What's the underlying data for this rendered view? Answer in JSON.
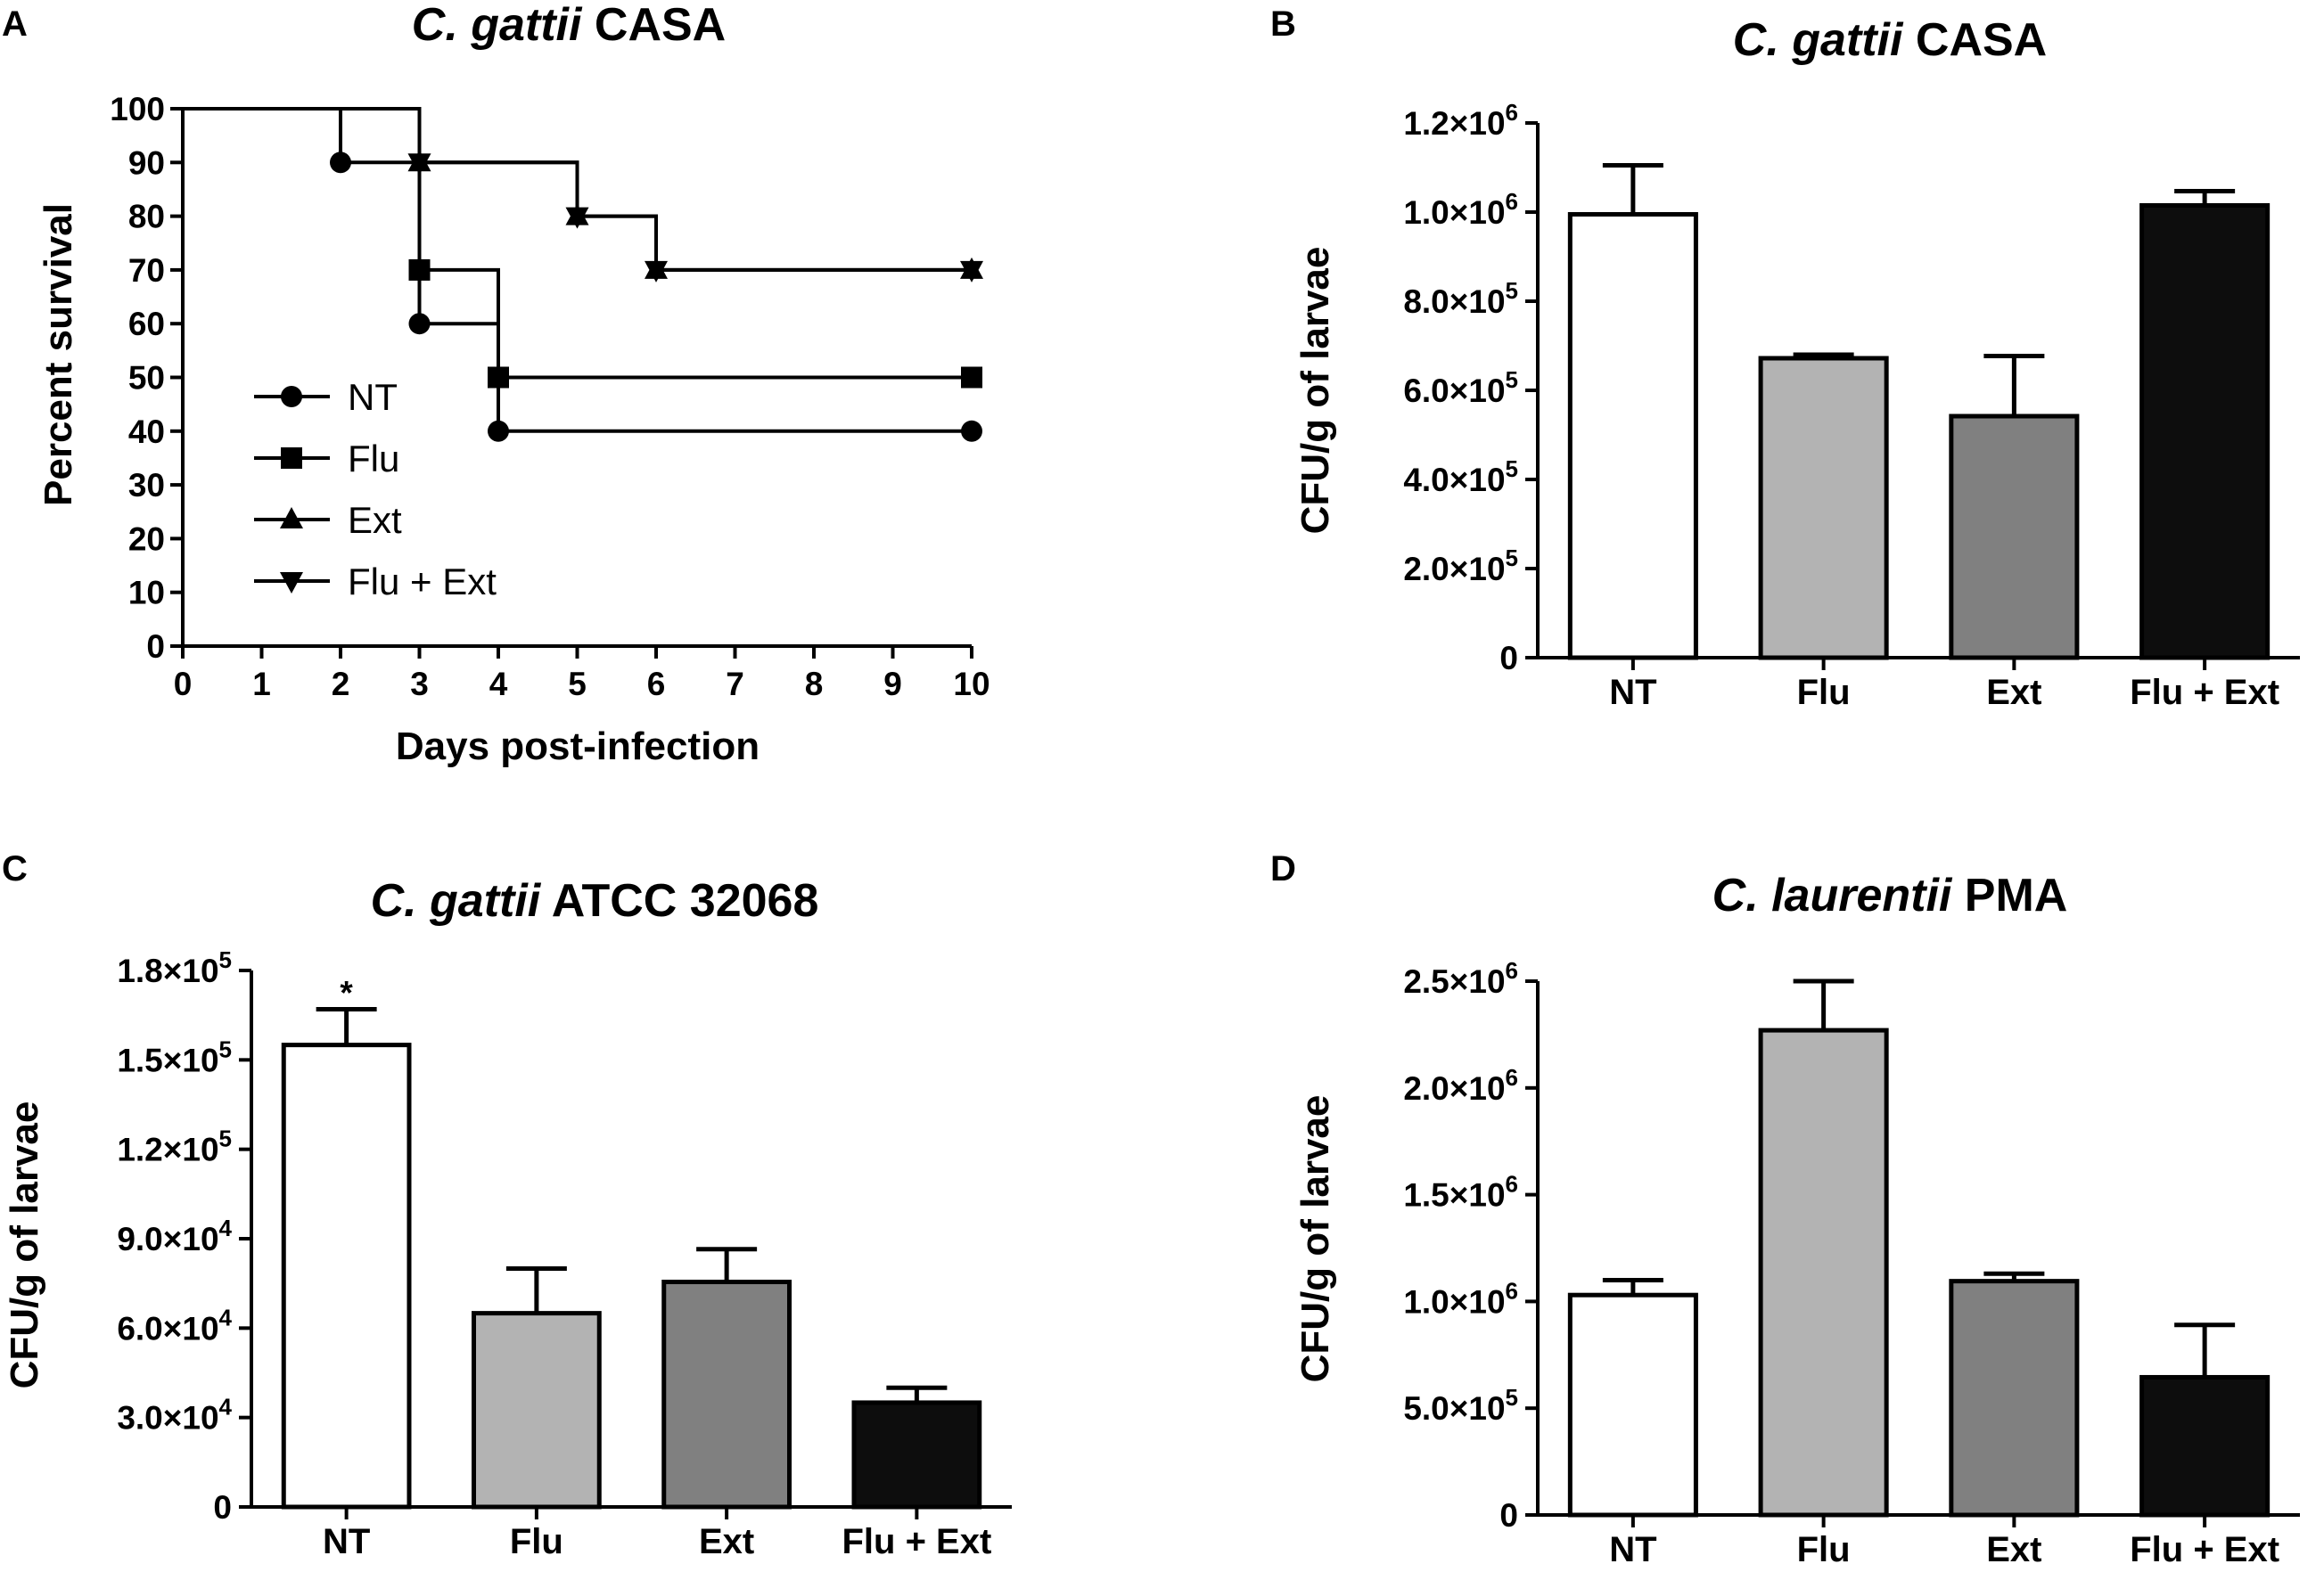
{
  "chart_data": [
    {
      "panel": "A",
      "type": "line",
      "title_italic": "C. gattii",
      "title_rest": " CASA",
      "xlabel": "Days post-infection",
      "ylabel": "Percent survival",
      "xlim": [
        0,
        10
      ],
      "ylim": [
        0,
        100
      ],
      "xticks": [
        "0",
        "1",
        "2",
        "3",
        "4",
        "5",
        "6",
        "7",
        "8",
        "9",
        "10"
      ],
      "yticks": [
        "0",
        "10",
        "20",
        "30",
        "40",
        "50",
        "60",
        "70",
        "80",
        "90",
        "100"
      ],
      "series": [
        {
          "name": "NT",
          "marker": "circle",
          "steps": [
            [
              0,
              100
            ],
            [
              2,
              90
            ],
            [
              3,
              60
            ],
            [
              4,
              40
            ],
            [
              10,
              40
            ]
          ]
        },
        {
          "name": "Flu",
          "marker": "square",
          "steps": [
            [
              0,
              100
            ],
            [
              3,
              70
            ],
            [
              4,
              50
            ],
            [
              10,
              50
            ]
          ]
        },
        {
          "name": "Ext",
          "marker": "triangle-up",
          "steps": [
            [
              0,
              100
            ],
            [
              3,
              90
            ],
            [
              5,
              80
            ],
            [
              6,
              70
            ],
            [
              10,
              70
            ]
          ]
        },
        {
          "name": "Flu + Ext",
          "marker": "triangle-down",
          "steps": [
            [
              0,
              100
            ],
            [
              3,
              90
            ],
            [
              5,
              80
            ],
            [
              6,
              70
            ],
            [
              10,
              70
            ]
          ]
        }
      ]
    },
    {
      "panel": "B",
      "type": "bar",
      "title_italic": "C. gattii",
      "title_rest": " CASA",
      "ylabel": "CFU/g of larvae",
      "ylim": [
        0,
        1200000
      ],
      "yticks": [
        {
          "value": 0,
          "mant": "0",
          "exp": ""
        },
        {
          "value": 200000,
          "mant": "2.0×10",
          "exp": "5"
        },
        {
          "value": 400000,
          "mant": "4.0×10",
          "exp": "5"
        },
        {
          "value": 600000,
          "mant": "6.0×10",
          "exp": "5"
        },
        {
          "value": 800000,
          "mant": "8.0×10",
          "exp": "5"
        },
        {
          "value": 1000000,
          "mant": "1.0×10",
          "exp": "6"
        },
        {
          "value": 1200000,
          "mant": "1.2×10",
          "exp": "6"
        }
      ],
      "categories": [
        "NT",
        "Flu",
        "Ext",
        "Flu + Ext"
      ],
      "values": [
        995000,
        672000,
        542000,
        1015000
      ],
      "errors": [
        110000,
        8000,
        135000,
        32000
      ],
      "annotations": [
        "",
        "",
        "",
        ""
      ]
    },
    {
      "panel": "C",
      "type": "bar",
      "title_italic": "C. gattii",
      "title_rest": " ATCC 32068",
      "ylabel": "CFU/g of larvae",
      "ylim": [
        0,
        180000
      ],
      "yticks": [
        {
          "value": 0,
          "mant": "0",
          "exp": ""
        },
        {
          "value": 30000,
          "mant": "3.0×10",
          "exp": "4"
        },
        {
          "value": 60000,
          "mant": "6.0×10",
          "exp": "4"
        },
        {
          "value": 90000,
          "mant": "9.0×10",
          "exp": "4"
        },
        {
          "value": 120000,
          "mant": "1.2×10",
          "exp": "5"
        },
        {
          "value": 150000,
          "mant": "1.5×10",
          "exp": "5"
        },
        {
          "value": 180000,
          "mant": "1.8×10",
          "exp": "5"
        }
      ],
      "categories": [
        "NT",
        "Flu",
        "Ext",
        "Flu + Ext"
      ],
      "values": [
        155000,
        65000,
        75500,
        35000
      ],
      "errors": [
        12000,
        15000,
        11000,
        5000
      ],
      "annotations": [
        "*",
        "",
        "",
        ""
      ]
    },
    {
      "panel": "D",
      "type": "bar",
      "title_italic": "C. laurentii",
      "title_rest": " PMA",
      "ylabel": "CFU/g of larvae",
      "ylim": [
        0,
        2500000
      ],
      "yticks": [
        {
          "value": 0,
          "mant": "0",
          "exp": ""
        },
        {
          "value": 500000,
          "mant": "5.0×10",
          "exp": "5"
        },
        {
          "value": 1000000,
          "mant": "1.0×10",
          "exp": "6"
        },
        {
          "value": 1500000,
          "mant": "1.5×10",
          "exp": "6"
        },
        {
          "value": 2000000,
          "mant": "2.0×10",
          "exp": "6"
        },
        {
          "value": 2500000,
          "mant": "2.5×10",
          "exp": "6"
        }
      ],
      "categories": [
        "NT",
        "Flu",
        "Ext",
        "Flu + Ext"
      ],
      "values": [
        1030000,
        2270000,
        1095000,
        645000
      ],
      "errors": [
        70000,
        230000,
        35000,
        245000
      ],
      "annotations": [
        "",
        "",
        "",
        ""
      ]
    }
  ],
  "bar_colors": [
    "#ffffff",
    "#b3b3b3",
    "#808080",
    "#0d0d0d"
  ]
}
